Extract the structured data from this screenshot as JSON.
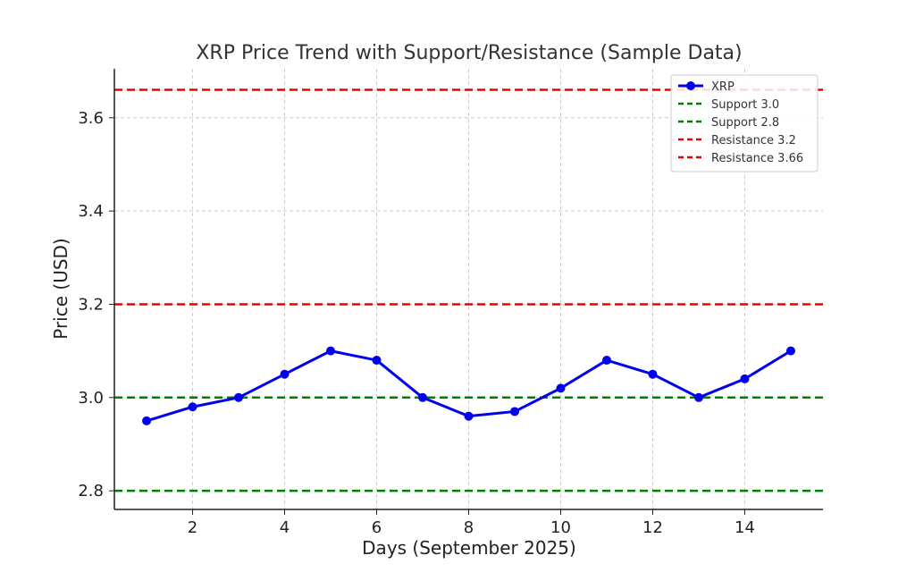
{
  "chart_data": {
    "type": "line",
    "title": "XRP Price Trend with Support/Resistance (Sample Data)",
    "xlabel": "Days (September 2025)",
    "ylabel": "Price (USD)",
    "xlim": [
      0.3,
      15.7
    ],
    "ylim": [
      2.76,
      3.705
    ],
    "x_ticks": [
      2,
      4,
      6,
      8,
      10,
      12,
      14
    ],
    "y_ticks": [
      2.8,
      3.0,
      3.2,
      3.4,
      3.6
    ],
    "y_tick_labels": [
      "2.8",
      "3.0",
      "3.2",
      "3.4",
      "3.6"
    ],
    "grid": true,
    "legend_position": "top-right",
    "series": [
      {
        "name": "XRP",
        "color": "#0000ee",
        "style": "solid-with-markers",
        "x": [
          1,
          2,
          3,
          4,
          5,
          6,
          7,
          8,
          9,
          10,
          11,
          12,
          13,
          14,
          15
        ],
        "values": [
          2.95,
          2.98,
          3.0,
          3.05,
          3.1,
          3.08,
          3.0,
          2.96,
          2.97,
          3.02,
          3.08,
          3.05,
          3.0,
          3.04,
          3.1
        ]
      }
    ],
    "reference_lines": [
      {
        "name": "Support 3.0",
        "value": 3.0,
        "color": "#008000"
      },
      {
        "name": "Support 2.8",
        "value": 2.8,
        "color": "#008000"
      },
      {
        "name": "Resistance 3.2",
        "value": 3.2,
        "color": "#ee0000"
      },
      {
        "name": "Resistance 3.66",
        "value": 3.66,
        "color": "#ee0000"
      }
    ]
  }
}
